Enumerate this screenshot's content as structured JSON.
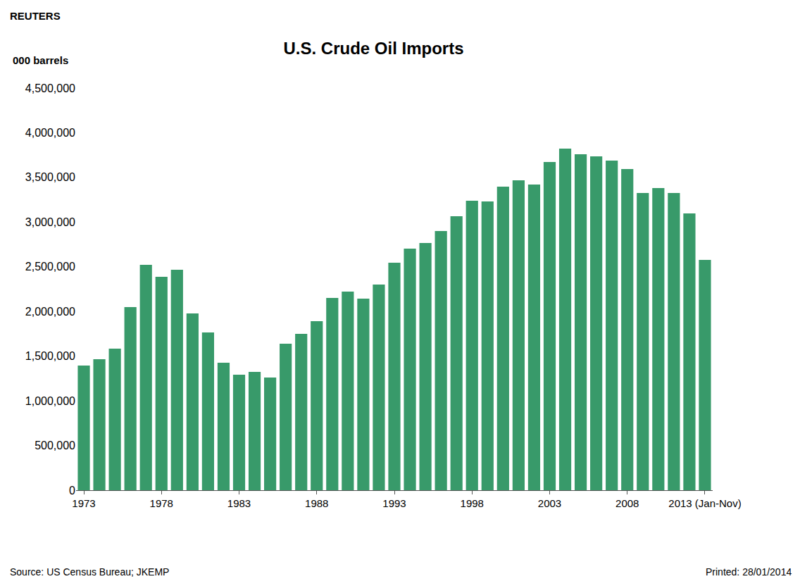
{
  "chart_data": {
    "type": "bar",
    "title": "U.S. Crude Oil Imports",
    "y_label": "000 barrels",
    "annotations": [
      "REUTERS",
      "Source: US Census Bureau; JKEMP",
      "Printed: 28/01/2014"
    ],
    "categories": [
      "1973",
      null,
      null,
      null,
      null,
      "1978",
      null,
      null,
      null,
      null,
      "1983",
      null,
      null,
      null,
      null,
      "1988",
      null,
      null,
      null,
      null,
      "1993",
      null,
      null,
      null,
      null,
      "1998",
      null,
      null,
      null,
      null,
      "2003",
      null,
      null,
      null,
      null,
      "2008",
      null,
      null,
      null,
      null,
      "2013 (Jan-Nov)"
    ],
    "values": [
      1395000,
      1466000,
      1584000,
      2049000,
      2522000,
      2388000,
      2467000,
      1978000,
      1765000,
      1426000,
      1292000,
      1324000,
      1261000,
      1639000,
      1749000,
      1891000,
      2151000,
      2222000,
      2143000,
      2301000,
      2545000,
      2703000,
      2766000,
      2900000,
      3065000,
      3239000,
      3231000,
      3396000,
      3467000,
      3420000,
      3672000,
      3822000,
      3759000,
      3735000,
      3688000,
      3593000,
      3325000,
      3381000,
      3325000,
      3097000,
      2577000
    ],
    "color": "#389a6a",
    "ylim": [
      0,
      4500000
    ],
    "yticks": [
      0,
      {
        "value": 500000,
        "label": "500,000"
      },
      {
        "value": 1000000,
        "label": "1,000,000"
      },
      {
        "value": 1500000,
        "label": "1,500,000"
      },
      {
        "value": 2000000,
        "label": "2,000,000"
      },
      {
        "value": 2500000,
        "label": "2,500,000"
      },
      {
        "value": 3000000,
        "label": "3,000,000"
      },
      {
        "value": 3500000,
        "label": "3,500,000"
      },
      {
        "value": 4000000,
        "label": "4,000,000"
      },
      {
        "value": 4500000,
        "label": "4,500,000"
      }
    ],
    "grid": false
  }
}
